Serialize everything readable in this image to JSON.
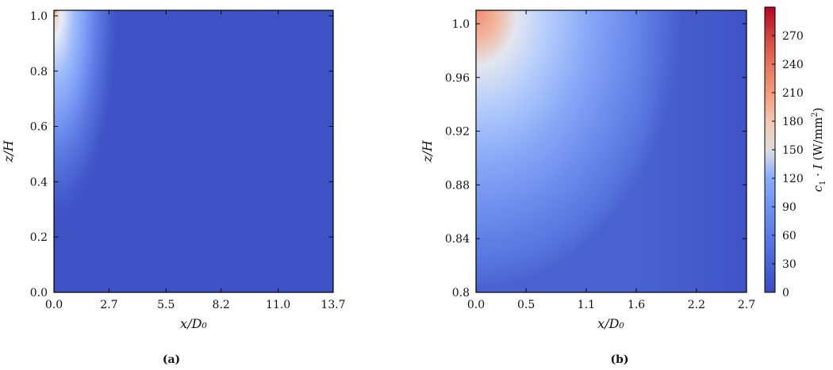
{
  "chart_data": [
    {
      "type": "heatmap",
      "panel_label": "(a)",
      "xlabel": "x/D₀",
      "ylabel": "z/H",
      "xlim": [
        0.0,
        13.7
      ],
      "ylim": [
        0.0,
        1.02
      ],
      "x_ticks": [
        "0.0",
        "2.7",
        "5.5",
        "8.2",
        "11.0",
        "13.7"
      ],
      "y_ticks": [
        "0.0",
        "0.2",
        "0.4",
        "0.6",
        "0.8",
        "1.0"
      ],
      "peak_location": {
        "x": 0.0,
        "z": 1.02
      },
      "peak_value": 295,
      "background_value": 10
    },
    {
      "type": "heatmap",
      "panel_label": "(b)",
      "xlabel": "x/D₀",
      "ylabel": "z/H",
      "xlim": [
        0.0,
        2.7
      ],
      "ylim": [
        0.8,
        1.01
      ],
      "x_ticks": [
        "0.0",
        "0.5",
        "1.1",
        "1.6",
        "2.2",
        "2.7"
      ],
      "y_ticks": [
        "0.8",
        "0.84",
        "0.88",
        "0.92",
        "0.96",
        "1.0"
      ],
      "peak_location": {
        "x": 0.0,
        "z": 1.01
      },
      "peak_value": 240,
      "background_value": 10
    }
  ],
  "colorbar": {
    "label_base": "c₁ · I  (W/mm",
    "label_sup": "2",
    "label_end": ")",
    "ticks": [
      "0",
      "30",
      "60",
      "90",
      "120",
      "150",
      "180",
      "210",
      "240",
      "270"
    ],
    "range": [
      0,
      300
    ],
    "colormap": "coolwarm",
    "low_color": "#3b4cc0",
    "mid_color": "#dddddd",
    "high_color": "#b40426"
  }
}
